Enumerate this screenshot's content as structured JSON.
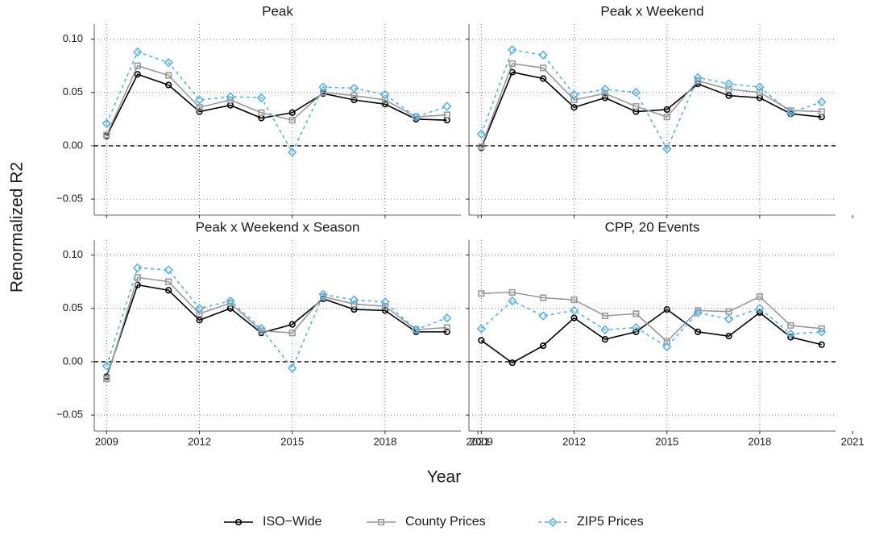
{
  "y_label": "Renormalized R2",
  "x_label": "Year",
  "chart_data": [
    {
      "type": "line",
      "title": "Peak",
      "x": [
        2009,
        2010,
        2011,
        2012,
        2013,
        2014,
        2015,
        2016,
        2017,
        2018,
        2019,
        2020
      ],
      "series": [
        {
          "name": "ISO−Wide",
          "color": "#000000",
          "values": [
            0.009,
            0.067,
            0.057,
            0.032,
            0.038,
            0.026,
            0.031,
            0.049,
            0.043,
            0.039,
            0.025,
            0.024
          ]
        },
        {
          "name": "County Prices",
          "color": "#999999",
          "values": [
            0.01,
            0.075,
            0.066,
            0.036,
            0.043,
            0.031,
            0.024,
            0.05,
            0.047,
            0.043,
            0.027,
            0.029
          ]
        },
        {
          "name": "ZIP5 Prices",
          "color": "#56b4e9",
          "values": [
            0.021,
            0.088,
            0.078,
            0.043,
            0.046,
            0.045,
            -0.006,
            0.055,
            0.054,
            0.048,
            0.027,
            0.037
          ]
        }
      ],
      "xlim": [
        2008.6,
        2020.45
      ],
      "xticks": [
        2009,
        2012,
        2015,
        2018,
        2021
      ],
      "ylim": [
        -0.065,
        0.114
      ],
      "yticks": [
        {
          "value": -0.05,
          "label": "−0.05"
        },
        {
          "value": 0,
          "label": "0.00"
        },
        {
          "value": 0.05,
          "label": "0.05"
        },
        {
          "value": 0.1,
          "label": "0.10"
        }
      ],
      "hline": 0,
      "grid": true
    },
    {
      "type": "line",
      "title": "Peak x Weekend",
      "x": [
        2009,
        2010,
        2011,
        2012,
        2013,
        2014,
        2015,
        2016,
        2017,
        2018,
        2019,
        2020
      ],
      "series": [
        {
          "name": "ISO−Wide",
          "color": "#000000",
          "values": [
            -0.002,
            0.069,
            0.063,
            0.036,
            0.045,
            0.032,
            0.034,
            0.058,
            0.047,
            0.045,
            0.03,
            0.027
          ]
        },
        {
          "name": "County Prices",
          "color": "#999999",
          "values": [
            -0.001,
            0.077,
            0.073,
            0.043,
            0.049,
            0.037,
            0.027,
            0.061,
            0.053,
            0.05,
            0.033,
            0.032
          ]
        },
        {
          "name": "ZIP5 Prices",
          "color": "#56b4e9",
          "values": [
            0.011,
            0.09,
            0.085,
            0.048,
            0.053,
            0.05,
            -0.003,
            0.064,
            0.058,
            0.055,
            0.031,
            0.041
          ]
        }
      ],
      "xlim": [
        2008.6,
        2020.45
      ],
      "xticks": [
        2009,
        2012,
        2015,
        2018,
        2021
      ],
      "ylim": [
        -0.065,
        0.114
      ],
      "yticks": [
        {
          "value": -0.05,
          "label": "−0.05"
        },
        {
          "value": 0,
          "label": "0.00"
        },
        {
          "value": 0.05,
          "label": "0.05"
        },
        {
          "value": 0.1,
          "label": "0.10"
        }
      ],
      "hline": 0,
      "grid": true
    },
    {
      "type": "line",
      "title": "Peak x Weekend x Season",
      "x": [
        2009,
        2010,
        2011,
        2012,
        2013,
        2014,
        2015,
        2016,
        2017,
        2018,
        2019,
        2020
      ],
      "series": [
        {
          "name": "ISO−Wide",
          "color": "#000000",
          "values": [
            -0.014,
            0.072,
            0.067,
            0.039,
            0.05,
            0.027,
            0.035,
            0.059,
            0.049,
            0.048,
            0.028,
            0.028
          ]
        },
        {
          "name": "County Prices",
          "color": "#999999",
          "values": [
            -0.016,
            0.079,
            0.075,
            0.045,
            0.055,
            0.029,
            0.027,
            0.061,
            0.054,
            0.052,
            0.03,
            0.032
          ]
        },
        {
          "name": "ZIP5 Prices",
          "color": "#56b4e9",
          "values": [
            -0.004,
            0.088,
            0.086,
            0.05,
            0.057,
            0.031,
            -0.006,
            0.063,
            0.058,
            0.056,
            0.03,
            0.041
          ]
        }
      ],
      "xlim": [
        2008.6,
        2020.45
      ],
      "xticks": [
        2009,
        2012,
        2015,
        2018,
        2021
      ],
      "ylim": [
        -0.065,
        0.114
      ],
      "yticks": [
        {
          "value": -0.05,
          "label": "−0.05"
        },
        {
          "value": 0,
          "label": "0.00"
        },
        {
          "value": 0.05,
          "label": "0.05"
        },
        {
          "value": 0.1,
          "label": "0.10"
        }
      ],
      "hline": 0,
      "grid": true
    },
    {
      "type": "line",
      "title": "CPP, 20 Events",
      "x": [
        2009,
        2010,
        2011,
        2012,
        2013,
        2014,
        2015,
        2016,
        2017,
        2018,
        2019,
        2020
      ],
      "series": [
        {
          "name": "ISO−Wide",
          "color": "#000000",
          "values": [
            0.02,
            -0.001,
            0.015,
            0.041,
            0.021,
            0.028,
            0.049,
            0.028,
            0.024,
            0.046,
            0.023,
            0.016
          ]
        },
        {
          "name": "County Prices",
          "color": "#999999",
          "values": [
            0.064,
            0.065,
            0.06,
            0.058,
            0.043,
            0.045,
            0.019,
            0.048,
            0.047,
            0.061,
            0.034,
            0.031
          ]
        },
        {
          "name": "ZIP5 Prices",
          "color": "#56b4e9",
          "values": [
            0.031,
            0.057,
            0.043,
            0.048,
            0.03,
            0.032,
            0.014,
            0.046,
            0.04,
            0.05,
            0.026,
            0.028
          ]
        }
      ],
      "xlim": [
        2008.6,
        2020.45
      ],
      "xticks": [
        2009,
        2012,
        2015,
        2018,
        2021
      ],
      "ylim": [
        -0.065,
        0.114
      ],
      "yticks": [
        {
          "value": -0.05,
          "label": "−0.05"
        },
        {
          "value": 0,
          "label": "0.00"
        },
        {
          "value": 0.05,
          "label": "0.05"
        },
        {
          "value": 0.1,
          "label": "0.10"
        }
      ],
      "hline": 0,
      "grid": true
    }
  ]
}
